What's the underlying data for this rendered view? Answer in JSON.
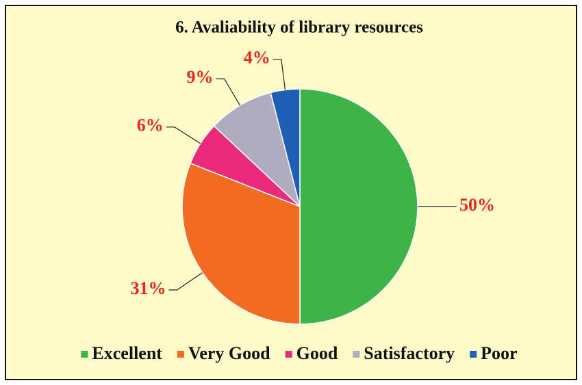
{
  "chart_data": {
    "type": "pie",
    "title": "6. Avaliability of library resources",
    "categories": [
      "Excellent",
      "Very Good",
      "Good",
      "Satisfactory",
      "Poor"
    ],
    "values": [
      50,
      31,
      6,
      9,
      4
    ],
    "value_labels": [
      "50%",
      "31%",
      "6%",
      "9%",
      "4%"
    ],
    "colors": [
      "#3db34a",
      "#f26b22",
      "#ec2a7b",
      "#aeacbe",
      "#1e5fb4"
    ],
    "legend": "bottom"
  }
}
